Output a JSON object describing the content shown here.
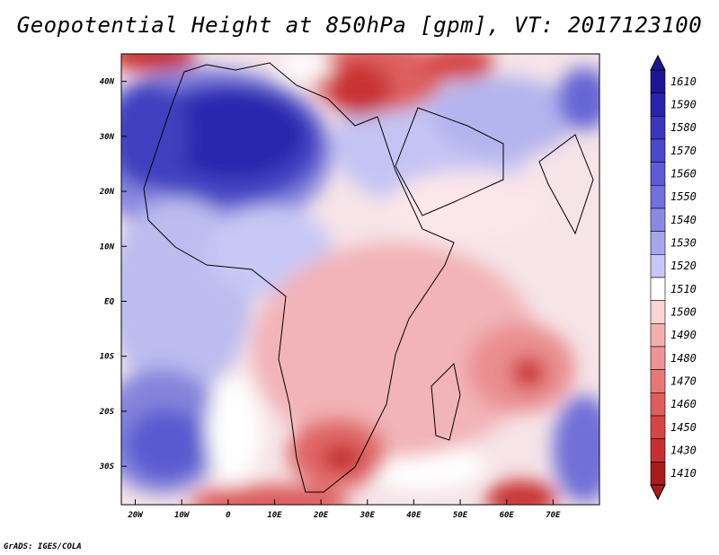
{
  "title": "Geopotential Height at 850hPa [gpm], VT: 2017123100",
  "footer": "GrADS: IGES/COLA",
  "map": {
    "lon_range": [
      -23,
      80
    ],
    "lat_range": [
      -37,
      45
    ],
    "lat_ticks": [
      {
        "value": 40,
        "label": "40N"
      },
      {
        "value": 30,
        "label": "30N"
      },
      {
        "value": 20,
        "label": "20N"
      },
      {
        "value": 10,
        "label": "10N"
      },
      {
        "value": 0,
        "label": "EQ"
      },
      {
        "value": -10,
        "label": "10S"
      },
      {
        "value": -20,
        "label": "20S"
      },
      {
        "value": -30,
        "label": "30S"
      }
    ],
    "lon_ticks": [
      {
        "value": -20,
        "label": "20W"
      },
      {
        "value": -10,
        "label": "10W"
      },
      {
        "value": 0,
        "label": "0"
      },
      {
        "value": 10,
        "label": "10E"
      },
      {
        "value": 20,
        "label": "20E"
      },
      {
        "value": 30,
        "label": "30E"
      },
      {
        "value": 40,
        "label": "40E"
      },
      {
        "value": 50,
        "label": "50E"
      },
      {
        "value": 60,
        "label": "60E"
      },
      {
        "value": 70,
        "label": "70E"
      }
    ]
  },
  "colorbar": {
    "levels": [
      {
        "label": "1610",
        "color": "#1c1696"
      },
      {
        "label": "1590",
        "color": "#2a24ad"
      },
      {
        "label": "1580",
        "color": "#3a36c0"
      },
      {
        "label": "1570",
        "color": "#4a48cc"
      },
      {
        "label": "1560",
        "color": "#5c5cd6"
      },
      {
        "label": "1550",
        "color": "#7070de"
      },
      {
        "label": "1540",
        "color": "#8a8ae6"
      },
      {
        "label": "1530",
        "color": "#a6a6ee"
      },
      {
        "label": "1520",
        "color": "#c8c8f6"
      },
      {
        "label": "1510",
        "color": "#ffffff"
      },
      {
        "label": "1500",
        "color": "#fbd4d4"
      },
      {
        "label": "1490",
        "color": "#f4b0b0"
      },
      {
        "label": "1480",
        "color": "#ee9494"
      },
      {
        "label": "1470",
        "color": "#e67878"
      },
      {
        "label": "1460",
        "color": "#de5e5e"
      },
      {
        "label": "1450",
        "color": "#d64646"
      },
      {
        "label": "1430",
        "color": "#c83030"
      },
      {
        "label": "1410",
        "color": "#a81c1c"
      }
    ]
  }
}
